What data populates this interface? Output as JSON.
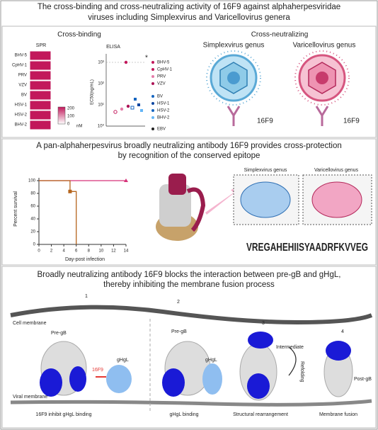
{
  "header": {
    "title": [
      "The cross-binding and cross-neutralizing activity of 16F9 against alphaherpesviridae",
      "viruses including Simplexvirus and Varicellovirus genera"
    ]
  },
  "panel1": {
    "cross_binding": "Cross-binding",
    "spr": {
      "title": "SPR",
      "rows": [
        "BHV-5",
        "CpHV-1",
        "PRV",
        "VZV",
        "BV",
        "HSV-1",
        "HSV-2",
        "BHV-2"
      ],
      "colorbar_ticks": [
        200,
        100,
        0
      ],
      "unit": "nM"
    },
    "elisa": {
      "title": "ELISA",
      "ylabel": "EC50(ng/mL)",
      "yticks": [
        "10³",
        "10²",
        "10¹",
        "10⁰"
      ],
      "star": "*",
      "legend": [
        "BHV-5",
        "CpHV-1",
        "PRV",
        "VZV",
        "BV",
        "HSV-1",
        "HSV-2",
        "BHV-2",
        "EBV"
      ]
    },
    "cross_neutralizing": "Cross-neutralizing",
    "simplex": "Simplexvirus genus",
    "varicello": "Varicellovirus genus",
    "antibody": [
      "16F9",
      "16F9"
    ]
  },
  "panel2": {
    "title": [
      "A pan-alphaherpesvirus broadly neutralizing antibody 16F9 provides cross-protection",
      "by recognition of the conserved epitope"
    ],
    "survival": {
      "ylabel": "Percent survival",
      "xlabel": "Day-post infection",
      "xlim": [
        0,
        14
      ],
      "ylim": [
        0,
        100
      ],
      "xticks": [
        0,
        2,
        4,
        6,
        8,
        10,
        12,
        14
      ],
      "yticks": [
        0,
        20,
        40,
        60,
        80,
        100
      ],
      "series": [
        {
          "color": "#d6337a",
          "marker": "triangle",
          "x": [
            0,
            14
          ],
          "values": [
            100,
            100
          ]
        },
        {
          "color": "#b5651d",
          "marker": "square",
          "x": [
            0,
            5,
            5,
            6,
            6
          ],
          "values": [
            100,
            100,
            83,
            83,
            0
          ]
        }
      ]
    },
    "simplex": "Simplexvirus genus",
    "varicello": "Varicellovirus genus",
    "logo": "VREGAHEHIISYAADRFKVVEG"
  },
  "panel3": {
    "title": [
      "Broadly neutralizing antibody 16F9 blocks the interaction between pre-gB and gHgL,",
      "thereby inhibiting the membrane fusion process"
    ],
    "steps": [
      "1",
      "2",
      "3",
      "4"
    ],
    "cell_membrane": "Cell membrane",
    "viral_membrane": "Viral membrane",
    "pre_gb": [
      "Pre-gB",
      "Pre-gB"
    ],
    "ghgl": [
      "gHgL",
      "gHgL"
    ],
    "antibody": "16F9",
    "intermediate": "Intermediate",
    "refolding": "Refolding",
    "post_gb": "Post-gB",
    "captions": [
      "16F9 inhibit gHgL binding",
      "gHgL binding",
      "Structural rearrangement",
      "Membrane fusion"
    ]
  }
}
